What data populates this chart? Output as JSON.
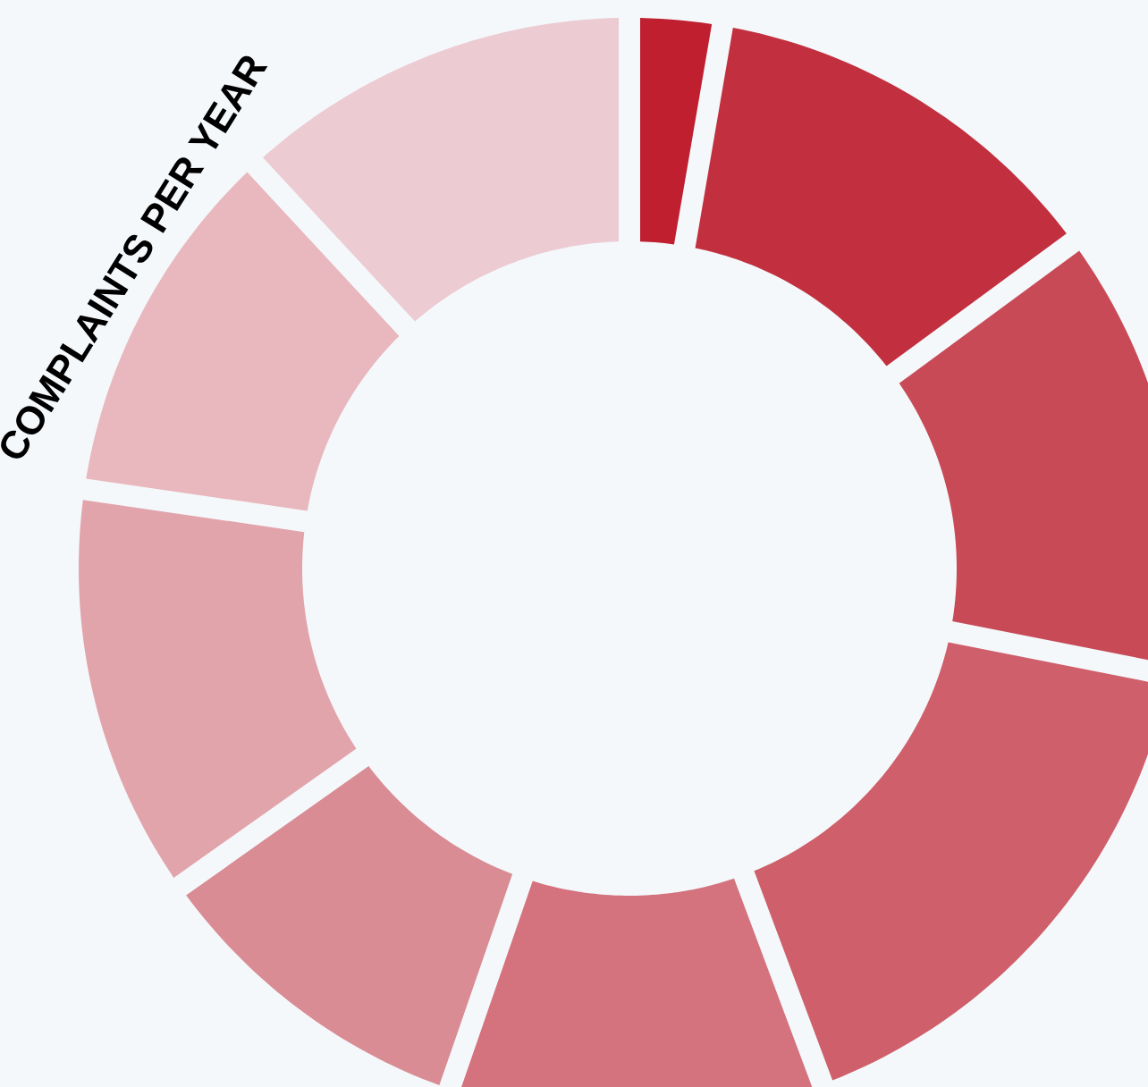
{
  "chart_data": {
    "type": "donut",
    "title": "COMPLAINTS PER YEAR",
    "categories": [
      null,
      null,
      null,
      null,
      null,
      null,
      null,
      null,
      null
    ],
    "values": [
      2.7,
      12.2,
      13.2,
      16.2,
      11.0,
      9.9,
      12.1,
      10.8,
      11.9
    ],
    "colors": [
      "#c01f30",
      "#c2303f",
      "#c94a57",
      "#cf5f6a",
      "#d4727d",
      "#d98c94",
      "#e2a4ab",
      "#e8b8be",
      "#ecccd2"
    ]
  }
}
